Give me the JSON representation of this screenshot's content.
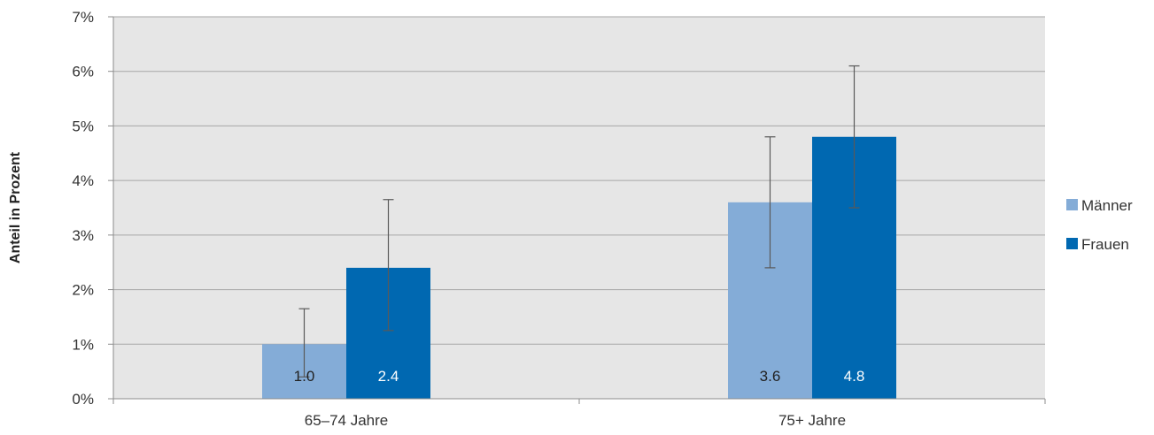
{
  "chart_data": {
    "type": "bar",
    "categories": [
      "65–74 Jahre",
      "75+ Jahre"
    ],
    "series": [
      {
        "name": "Männer",
        "color": "#84acd7",
        "label_color": "#222222",
        "values": [
          1.0,
          3.6
        ],
        "labels": [
          "1.0",
          "3.6"
        ],
        "error_low": [
          0.4,
          2.4
        ],
        "error_high": [
          1.65,
          4.8
        ]
      },
      {
        "name": "Frauen",
        "color": "#0068b1",
        "label_color": "#ffffff",
        "values": [
          2.4,
          4.8
        ],
        "labels": [
          "2.4",
          "4.8"
        ],
        "error_low": [
          1.25,
          3.5
        ],
        "error_high": [
          3.65,
          6.1
        ]
      }
    ],
    "ylabel": "Anteil in Prozent",
    "xlabel": "",
    "ylim": [
      0,
      7
    ],
    "yticks": [
      0,
      1,
      2,
      3,
      4,
      5,
      6,
      7
    ],
    "ytick_labels": [
      "0%",
      "1%",
      "2%",
      "3%",
      "4%",
      "5%",
      "6%",
      "7%"
    ],
    "grid": true,
    "legend_position": "right",
    "plot_background": "#e6e6e6"
  }
}
